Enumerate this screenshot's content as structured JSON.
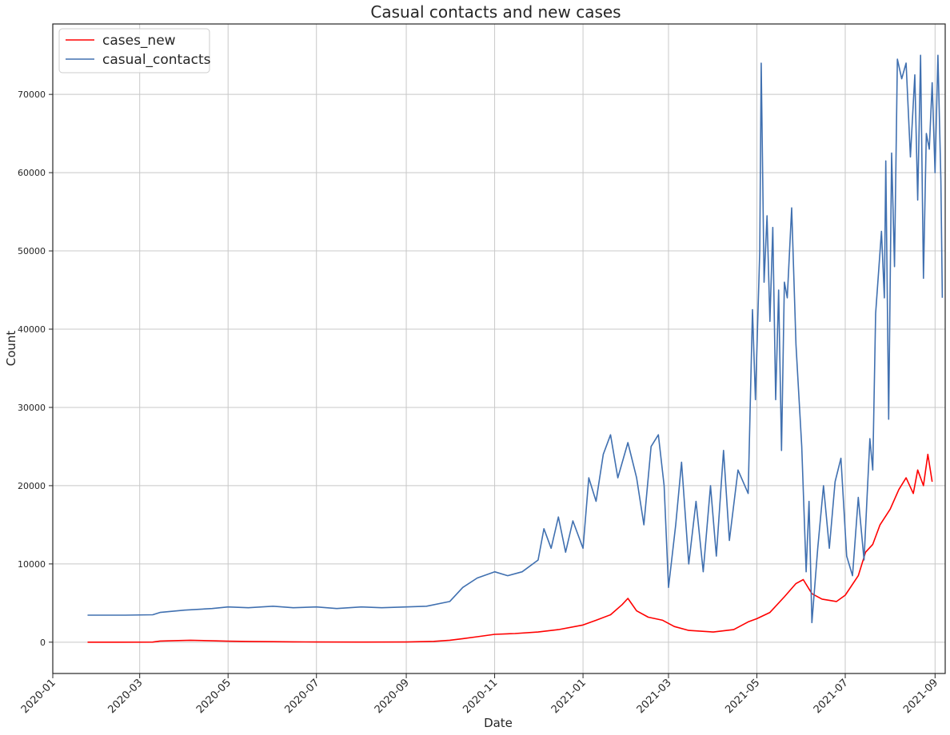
{
  "chart_data": {
    "type": "line",
    "title": "Casual contacts and new cases",
    "xlabel": "Date",
    "ylabel": "Count",
    "x_range": [
      "2020-01-01",
      "2021-09-08"
    ],
    "ylim": [
      -4000,
      79000
    ],
    "grid": true,
    "legend_position": "top-left",
    "x_ticks": [
      "2020-01",
      "2020-03",
      "2020-05",
      "2020-07",
      "2020-09",
      "2020-11",
      "2021-01",
      "2021-03",
      "2021-05",
      "2021-07",
      "2021-09"
    ],
    "y_ticks": [
      0,
      10000,
      20000,
      30000,
      40000,
      50000,
      60000,
      70000
    ],
    "series": [
      {
        "name": "cases_new",
        "color": "#ff0000",
        "points": [
          [
            "2020-01-25",
            0
          ],
          [
            "2020-02-15",
            0
          ],
          [
            "2020-03-10",
            10
          ],
          [
            "2020-03-15",
            150
          ],
          [
            "2020-03-25",
            200
          ],
          [
            "2020-04-05",
            250
          ],
          [
            "2020-04-20",
            180
          ],
          [
            "2020-05-01",
            120
          ],
          [
            "2020-05-15",
            90
          ],
          [
            "2020-06-01",
            60
          ],
          [
            "2020-06-15",
            40
          ],
          [
            "2020-07-01",
            20
          ],
          [
            "2020-08-01",
            15
          ],
          [
            "2020-09-01",
            20
          ],
          [
            "2020-09-20",
            100
          ],
          [
            "2020-10-01",
            250
          ],
          [
            "2020-10-10",
            450
          ],
          [
            "2020-10-20",
            700
          ],
          [
            "2020-11-01",
            1000
          ],
          [
            "2020-11-15",
            1100
          ],
          [
            "2020-12-01",
            1300
          ],
          [
            "2020-12-15",
            1600
          ],
          [
            "2021-01-01",
            2200
          ],
          [
            "2021-01-10",
            2800
          ],
          [
            "2021-01-20",
            3500
          ],
          [
            "2021-01-28",
            4800
          ],
          [
            "2021-02-01",
            5600
          ],
          [
            "2021-02-07",
            4000
          ],
          [
            "2021-02-15",
            3200
          ],
          [
            "2021-02-25",
            2800
          ],
          [
            "2021-03-05",
            2000
          ],
          [
            "2021-03-15",
            1500
          ],
          [
            "2021-04-01",
            1300
          ],
          [
            "2021-04-15",
            1600
          ],
          [
            "2021-04-25",
            2600
          ],
          [
            "2021-05-01",
            3000
          ],
          [
            "2021-05-10",
            3800
          ],
          [
            "2021-05-20",
            5800
          ],
          [
            "2021-05-28",
            7500
          ],
          [
            "2021-06-02",
            8000
          ],
          [
            "2021-06-08",
            6200
          ],
          [
            "2021-06-15",
            5500
          ],
          [
            "2021-06-25",
            5200
          ],
          [
            "2021-07-01",
            6000
          ],
          [
            "2021-07-10",
            8500
          ],
          [
            "2021-07-15",
            11500
          ],
          [
            "2021-07-20",
            12500
          ],
          [
            "2021-07-25",
            15000
          ],
          [
            "2021-08-01",
            17000
          ],
          [
            "2021-08-07",
            19500
          ],
          [
            "2021-08-12",
            21000
          ],
          [
            "2021-08-17",
            19000
          ],
          [
            "2021-08-20",
            22000
          ],
          [
            "2021-08-24",
            20000
          ],
          [
            "2021-08-27",
            24000
          ],
          [
            "2021-08-30",
            20500
          ]
        ]
      },
      {
        "name": "casual_contacts",
        "color": "#4070b0",
        "points": [
          [
            "2020-01-25",
            3450
          ],
          [
            "2020-02-20",
            3450
          ],
          [
            "2020-03-10",
            3500
          ],
          [
            "2020-03-15",
            3800
          ],
          [
            "2020-04-01",
            4100
          ],
          [
            "2020-04-20",
            4300
          ],
          [
            "2020-05-01",
            4500
          ],
          [
            "2020-05-15",
            4400
          ],
          [
            "2020-06-01",
            4600
          ],
          [
            "2020-06-15",
            4400
          ],
          [
            "2020-07-01",
            4500
          ],
          [
            "2020-07-15",
            4300
          ],
          [
            "2020-08-01",
            4500
          ],
          [
            "2020-08-15",
            4400
          ],
          [
            "2020-09-01",
            4500
          ],
          [
            "2020-09-15",
            4600
          ],
          [
            "2020-10-01",
            5200
          ],
          [
            "2020-10-10",
            7000
          ],
          [
            "2020-10-20",
            8200
          ],
          [
            "2020-11-01",
            9000
          ],
          [
            "2020-11-10",
            8500
          ],
          [
            "2020-11-20",
            9000
          ],
          [
            "2020-12-01",
            10500
          ],
          [
            "2020-12-05",
            14500
          ],
          [
            "2020-12-10",
            12000
          ],
          [
            "2020-12-15",
            16000
          ],
          [
            "2020-12-20",
            11500
          ],
          [
            "2020-12-25",
            15500
          ],
          [
            "2021-01-01",
            12000
          ],
          [
            "2021-01-05",
            21000
          ],
          [
            "2021-01-10",
            18000
          ],
          [
            "2021-01-15",
            24000
          ],
          [
            "2021-01-20",
            26500
          ],
          [
            "2021-01-25",
            21000
          ],
          [
            "2021-02-01",
            25500
          ],
          [
            "2021-02-07",
            21000
          ],
          [
            "2021-02-12",
            15000
          ],
          [
            "2021-02-17",
            25000
          ],
          [
            "2021-02-22",
            26500
          ],
          [
            "2021-02-26",
            20000
          ],
          [
            "2021-03-01",
            7000
          ],
          [
            "2021-03-06",
            15000
          ],
          [
            "2021-03-10",
            23000
          ],
          [
            "2021-03-15",
            10000
          ],
          [
            "2021-03-20",
            18000
          ],
          [
            "2021-03-25",
            9000
          ],
          [
            "2021-03-30",
            20000
          ],
          [
            "2021-04-03",
            11000
          ],
          [
            "2021-04-08",
            24500
          ],
          [
            "2021-04-12",
            13000
          ],
          [
            "2021-04-18",
            22000
          ],
          [
            "2021-04-25",
            19000
          ],
          [
            "2021-04-28",
            42500
          ],
          [
            "2021-04-30",
            31000
          ],
          [
            "2021-05-03",
            50000
          ],
          [
            "2021-05-04",
            74000
          ],
          [
            "2021-05-06",
            46000
          ],
          [
            "2021-05-08",
            54500
          ],
          [
            "2021-05-10",
            41000
          ],
          [
            "2021-05-12",
            53000
          ],
          [
            "2021-05-14",
            31000
          ],
          [
            "2021-05-16",
            45000
          ],
          [
            "2021-05-18",
            24500
          ],
          [
            "2021-05-20",
            46000
          ],
          [
            "2021-05-22",
            44000
          ],
          [
            "2021-05-25",
            55500
          ],
          [
            "2021-05-28",
            38000
          ],
          [
            "2021-06-01",
            25000
          ],
          [
            "2021-06-04",
            9000
          ],
          [
            "2021-06-06",
            18000
          ],
          [
            "2021-06-08",
            2500
          ],
          [
            "2021-06-12",
            12000
          ],
          [
            "2021-06-16",
            20000
          ],
          [
            "2021-06-20",
            12000
          ],
          [
            "2021-06-24",
            20500
          ],
          [
            "2021-06-28",
            23500
          ],
          [
            "2021-07-02",
            11000
          ],
          [
            "2021-07-06",
            8500
          ],
          [
            "2021-07-10",
            18500
          ],
          [
            "2021-07-14",
            10500
          ],
          [
            "2021-07-18",
            26000
          ],
          [
            "2021-07-20",
            22000
          ],
          [
            "2021-07-22",
            42000
          ],
          [
            "2021-07-26",
            52500
          ],
          [
            "2021-07-28",
            44000
          ],
          [
            "2021-07-29",
            61500
          ],
          [
            "2021-07-31",
            28500
          ],
          [
            "2021-08-02",
            62500
          ],
          [
            "2021-08-04",
            48000
          ],
          [
            "2021-08-06",
            74500
          ],
          [
            "2021-08-09",
            72000
          ],
          [
            "2021-08-12",
            74000
          ],
          [
            "2021-08-15",
            62000
          ],
          [
            "2021-08-18",
            72500
          ],
          [
            "2021-08-20",
            56500
          ],
          [
            "2021-08-22",
            75000
          ],
          [
            "2021-08-24",
            46500
          ],
          [
            "2021-08-26",
            65000
          ],
          [
            "2021-08-28",
            63000
          ],
          [
            "2021-08-30",
            71500
          ],
          [
            "2021-09-01",
            60000
          ],
          [
            "2021-09-03",
            75000
          ],
          [
            "2021-09-05",
            59000
          ],
          [
            "2021-09-06",
            44000
          ]
        ]
      }
    ]
  }
}
